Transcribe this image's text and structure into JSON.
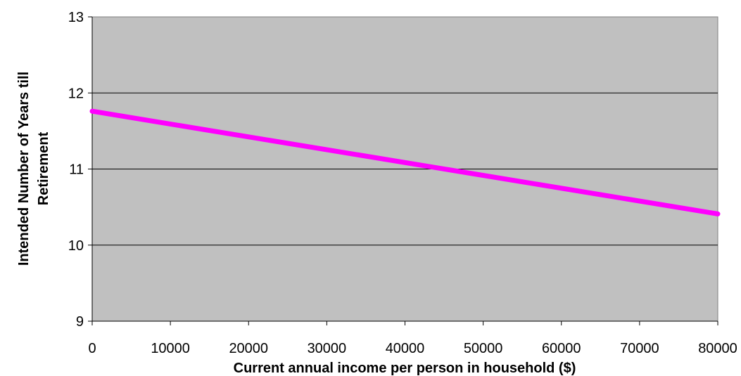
{
  "chart_data": {
    "type": "line",
    "title": "",
    "xlabel": "Current annual income per person in household ($)",
    "ylabel_lines": [
      "Intended Number of Years till",
      "Retirement"
    ],
    "xlim": [
      0,
      80000
    ],
    "ylim": [
      9,
      13
    ],
    "x_ticks": [
      "0",
      "10000",
      "20000",
      "30000",
      "40000",
      "50000",
      "60000",
      "70000",
      "80000"
    ],
    "y_ticks": [
      "9",
      "10",
      "11",
      "12",
      "13"
    ],
    "grid": "horizontal",
    "series": [
      {
        "color": "#ff00ff",
        "x": [
          0,
          80000
        ],
        "values": [
          11.76,
          10.41
        ]
      }
    ]
  },
  "colors": {
    "plot_background": "#c0c0c0",
    "gridline": "#000000",
    "line": "#ff00ff"
  }
}
